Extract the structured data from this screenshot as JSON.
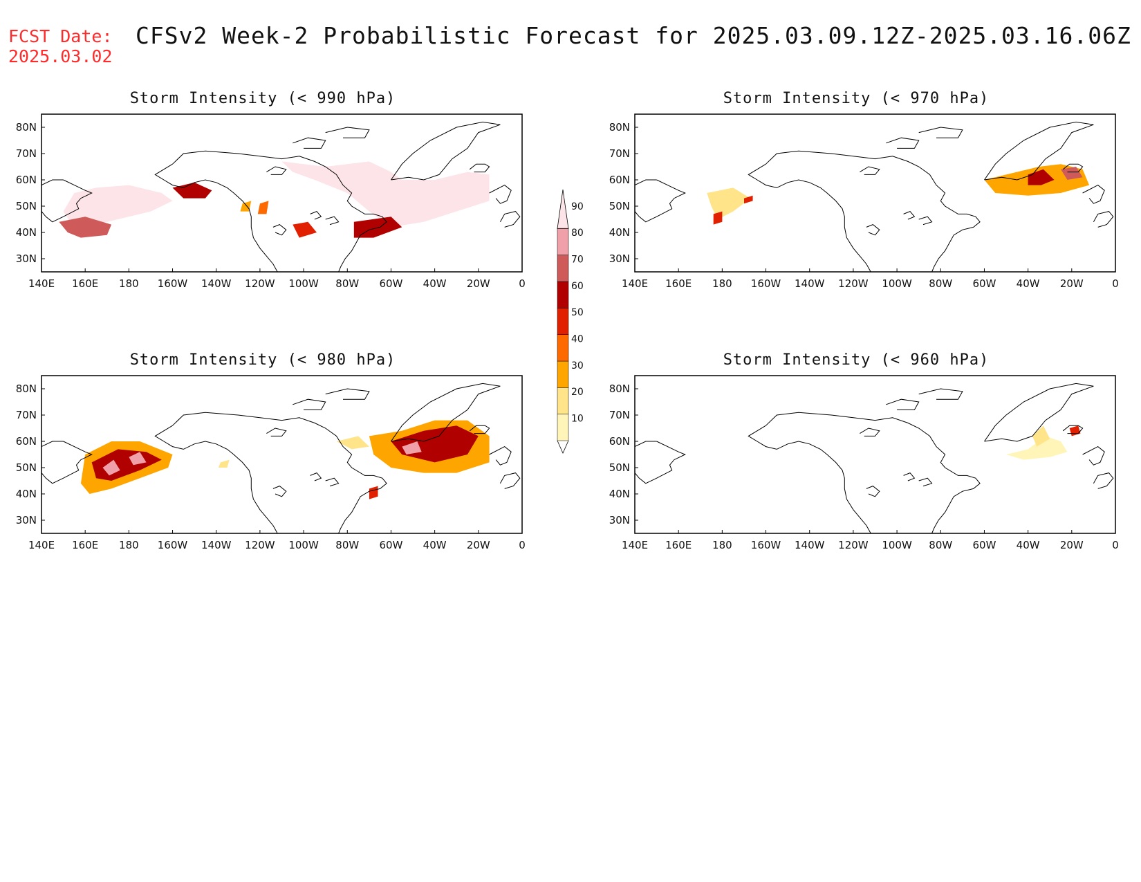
{
  "header": {
    "fcst_label": "FCST Date:",
    "fcst_date": "2025.03.02",
    "title": "CFSv2 Week-2 Probabilistic Forecast for 2025.03.09.12Z-2025.03.16.06Z"
  },
  "axes": {
    "lat_ticks": [
      "80N",
      "70N",
      "60N",
      "50N",
      "40N",
      "30N"
    ],
    "lon_ticks": [
      "140E",
      "160E",
      "180",
      "160W",
      "140W",
      "120W",
      "100W",
      "80W",
      "60W",
      "40W",
      "20W",
      "0"
    ],
    "lon_range": [
      140,
      360
    ],
    "lat_range": [
      25,
      85
    ]
  },
  "colorbar": {
    "levels": [
      "10",
      "20",
      "30",
      "40",
      "50",
      "60",
      "70",
      "80",
      "90"
    ],
    "colors": [
      "#fff5b8",
      "#ffe48a",
      "#ffa500",
      "#ff6a00",
      "#e02000",
      "#b00000",
      "#cf5a5a",
      "#f0a0a8",
      "#fde4e8"
    ]
  },
  "panels": [
    {
      "title": "Storm Intensity (< 990 hPa)",
      "regions": [
        {
          "level": 9,
          "coords": [
            [
              155,
              55
            ],
            [
              165,
              57
            ],
            [
              180,
              58
            ],
            [
              195,
              55
            ],
            [
              200,
              52
            ],
            [
              190,
              48
            ],
            [
              175,
              45
            ],
            [
              160,
              42
            ],
            [
              153,
              44
            ],
            [
              150,
              48
            ]
          ]
        },
        {
          "level": 9,
          "coords": [
            [
              250,
              67
            ],
            [
              270,
              65
            ],
            [
              290,
              67
            ],
            [
              300,
              63
            ],
            [
              305,
              60
            ],
            [
              320,
              60
            ],
            [
              335,
              63
            ],
            [
              345,
              62
            ],
            [
              345,
              52
            ],
            [
              330,
              48
            ],
            [
              315,
              44
            ],
            [
              300,
              42
            ],
            [
              290,
              48
            ],
            [
              280,
              55
            ],
            [
              265,
              60
            ],
            [
              255,
              63
            ]
          ]
        },
        {
          "level": 7,
          "coords": [
            [
              148,
              44
            ],
            [
              152,
              40
            ],
            [
              158,
              38
            ],
            [
              170,
              39
            ],
            [
              172,
              43
            ],
            [
              160,
              46
            ]
          ]
        },
        {
          "level": 6,
          "coords": [
            [
              200,
              57
            ],
            [
              210,
              59
            ],
            [
              218,
              56
            ],
            [
              215,
              53
            ],
            [
              205,
              53
            ]
          ]
        },
        {
          "level": 5,
          "coords": [
            [
              255,
              43
            ],
            [
              262,
              44
            ],
            [
              266,
              40
            ],
            [
              258,
              38
            ]
          ]
        },
        {
          "level": 6,
          "coords": [
            [
              283,
              44
            ],
            [
              300,
              46
            ],
            [
              305,
              42
            ],
            [
              292,
              38
            ],
            [
              283,
              38
            ]
          ]
        },
        {
          "level": 3,
          "coords": [
            [
              232,
              51
            ],
            [
              236,
              52
            ],
            [
              235,
              48
            ],
            [
              231,
              48
            ]
          ]
        },
        {
          "level": 4,
          "coords": [
            [
              240,
              51
            ],
            [
              244,
              52
            ],
            [
              243,
              47
            ],
            [
              239,
              47
            ]
          ]
        }
      ],
      "pos": "tl"
    },
    {
      "title": "Storm Intensity (< 970 hPa)",
      "regions": [
        {
          "level": 2,
          "coords": [
            [
              173,
              55
            ],
            [
              185,
              57
            ],
            [
              193,
              53
            ],
            [
              185,
              48
            ],
            [
              178,
              45
            ],
            [
              175,
              50
            ]
          ]
        },
        {
          "level": 5,
          "coords": [
            [
              176,
              47
            ],
            [
              180,
              48
            ],
            [
              180,
              44
            ],
            [
              176,
              43
            ]
          ]
        },
        {
          "level": 5,
          "coords": [
            [
              190,
              53
            ],
            [
              194,
              54
            ],
            [
              194,
              52
            ],
            [
              190,
              51
            ]
          ]
        },
        {
          "level": 3,
          "coords": [
            [
              300,
              60
            ],
            [
              310,
              62
            ],
            [
              325,
              65
            ],
            [
              335,
              66
            ],
            [
              345,
              64
            ],
            [
              348,
              58
            ],
            [
              335,
              55
            ],
            [
              320,
              54
            ],
            [
              305,
              55
            ]
          ]
        },
        {
          "level": 6,
          "coords": [
            [
              320,
              62
            ],
            [
              327,
              64
            ],
            [
              332,
              60
            ],
            [
              326,
              58
            ],
            [
              320,
              58
            ]
          ]
        },
        {
          "level": 7,
          "coords": [
            [
              335,
              64
            ],
            [
              342,
              65
            ],
            [
              345,
              61
            ],
            [
              338,
              60
            ]
          ]
        }
      ],
      "pos": "tr"
    },
    {
      "title": "Storm Intensity (< 980 hPa)",
      "regions": [
        {
          "level": 3,
          "coords": [
            [
              160,
              55
            ],
            [
              172,
              60
            ],
            [
              185,
              60
            ],
            [
              200,
              55
            ],
            [
              198,
              50
            ],
            [
              185,
              46
            ],
            [
              172,
              42
            ],
            [
              162,
              40
            ],
            [
              158,
              44
            ]
          ]
        },
        {
          "level": 6,
          "coords": [
            [
              163,
              52
            ],
            [
              175,
              57
            ],
            [
              188,
              56
            ],
            [
              195,
              53
            ],
            [
              185,
              49
            ],
            [
              172,
              45
            ],
            [
              165,
              46
            ]
          ]
        },
        {
          "level": 8,
          "coords": [
            [
              168,
              50
            ],
            [
              173,
              53
            ],
            [
              176,
              49
            ],
            [
              171,
              47
            ]
          ]
        },
        {
          "level": 8,
          "coords": [
            [
              180,
              54
            ],
            [
              185,
              56
            ],
            [
              188,
              52
            ],
            [
              182,
              51
            ]
          ]
        },
        {
          "level": 2,
          "coords": [
            [
              222,
              52
            ],
            [
              226,
              53
            ],
            [
              225,
              50
            ],
            [
              221,
              50
            ]
          ]
        },
        {
          "level": 2,
          "coords": [
            [
              275,
              60
            ],
            [
              285,
              62
            ],
            [
              290,
              58
            ],
            [
              282,
              57
            ]
          ]
        },
        {
          "level": 3,
          "coords": [
            [
              290,
              62
            ],
            [
              305,
              64
            ],
            [
              320,
              68
            ],
            [
              335,
              68
            ],
            [
              345,
              62
            ],
            [
              345,
              52
            ],
            [
              330,
              48
            ],
            [
              315,
              48
            ],
            [
              300,
              50
            ],
            [
              292,
              55
            ]
          ]
        },
        {
          "level": 6,
          "coords": [
            [
              300,
              60
            ],
            [
              315,
              64
            ],
            [
              330,
              66
            ],
            [
              340,
              62
            ],
            [
              335,
              55
            ],
            [
              320,
              52
            ],
            [
              305,
              55
            ]
          ]
        },
        {
          "level": 8,
          "coords": [
            [
              305,
              58
            ],
            [
              312,
              60
            ],
            [
              314,
              56
            ],
            [
              307,
              55
            ]
          ]
        },
        {
          "level": 5,
          "coords": [
            [
              290,
              42
            ],
            [
              294,
              43
            ],
            [
              294,
              39
            ],
            [
              290,
              38
            ]
          ]
        }
      ],
      "pos": "bl"
    },
    {
      "title": "Storm Intensity (< 960 hPa)",
      "regions": [
        {
          "level": 1,
          "coords": [
            [
              310,
              55
            ],
            [
              320,
              57
            ],
            [
              328,
              62
            ],
            [
              335,
              60
            ],
            [
              338,
              56
            ],
            [
              330,
              54
            ],
            [
              318,
              53
            ]
          ]
        },
        {
          "level": 2,
          "coords": [
            [
              322,
              62
            ],
            [
              327,
              66
            ],
            [
              330,
              61
            ],
            [
              324,
              58
            ]
          ]
        },
        {
          "level": 5,
          "coords": [
            [
              339,
              65
            ],
            [
              343,
              66
            ],
            [
              344,
              63
            ],
            [
              340,
              62
            ]
          ]
        }
      ],
      "pos": "br"
    }
  ]
}
